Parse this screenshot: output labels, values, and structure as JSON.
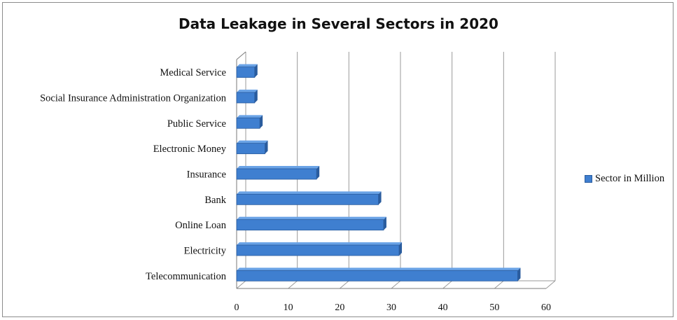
{
  "colors": {
    "bar": "#3f7fd0",
    "bar_dark": "#2a5c9e",
    "bar_top": "#6aa3e6",
    "grid": "#9a9a9a"
  },
  "chart_data": {
    "type": "bar",
    "orientation": "horizontal",
    "title": "Data Leakage in Several Sectors in 2020",
    "categories": [
      "Medical Service",
      "Social Insurance Administration Organization",
      "Public Service",
      "Electronic Money",
      "Insurance",
      "Bank",
      "Online Loan",
      "Electricity",
      "Telecommunication"
    ],
    "series": [
      {
        "name": "Sector in Million",
        "values": [
          3.5,
          3.5,
          4.5,
          5.5,
          15.5,
          27.5,
          28.5,
          31.5,
          54.5
        ]
      }
    ],
    "xlim": [
      0,
      60
    ],
    "xticks": [
      0,
      10,
      20,
      30,
      40,
      50,
      60
    ],
    "grid": true,
    "legend": "right"
  }
}
